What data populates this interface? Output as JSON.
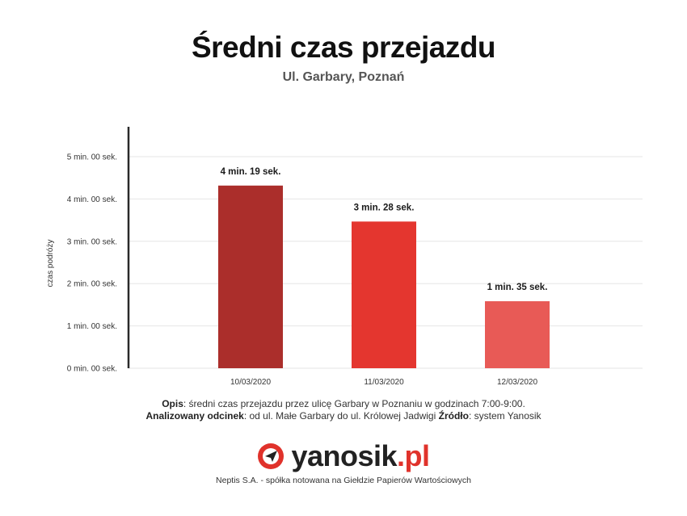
{
  "chart_data": {
    "type": "bar",
    "title": "Średni czas przejazdu",
    "subtitle": "Ul. Garbary, Poznań",
    "xlabel": "",
    "ylabel": "czas podróży",
    "categories": [
      "10/03/2020",
      "11/03/2020",
      "12/03/2020"
    ],
    "values_seconds": [
      259,
      208,
      95
    ],
    "data_labels": [
      "4 min. 19 sek.",
      "3 min. 28 sek.",
      "1 min. 35 sek."
    ],
    "bar_colors": [
      "#ab2e2b",
      "#e4362f",
      "#e85a56"
    ],
    "ylim_seconds": [
      0,
      300
    ],
    "y_ticks": [
      {
        "value": 0,
        "label": "0 min. 00 sek."
      },
      {
        "value": 60,
        "label": "1 min. 00 sek."
      },
      {
        "value": 120,
        "label": "2 min. 00 sek."
      },
      {
        "value": 180,
        "label": "3 min. 00 sek."
      },
      {
        "value": 240,
        "label": "4 min. 00 sek."
      },
      {
        "value": 300,
        "label": "5 min. 00 sek."
      }
    ],
    "grid": true,
    "legend": "none"
  },
  "note": {
    "line1_label": "Opis",
    "line1_text": ": średni czas przejazdu przez ulicę Garbary w Poznaniu w godzinach 7:00-9:00.",
    "line2_label": "Analizowany odcinek",
    "line2_text": ": od ul. Małe Garbary do ul. Królowej Jadwigi ",
    "line2_label2": "Źródło",
    "line2_text2": ": system Yanosik"
  },
  "logo": {
    "name": "yanosik",
    "dot_suffix": ".pl",
    "icon": "yanosik-logo-icon"
  },
  "footer": "Neptis S.A. - spółka notowana na Giełdzie Papierów Wartościowych"
}
